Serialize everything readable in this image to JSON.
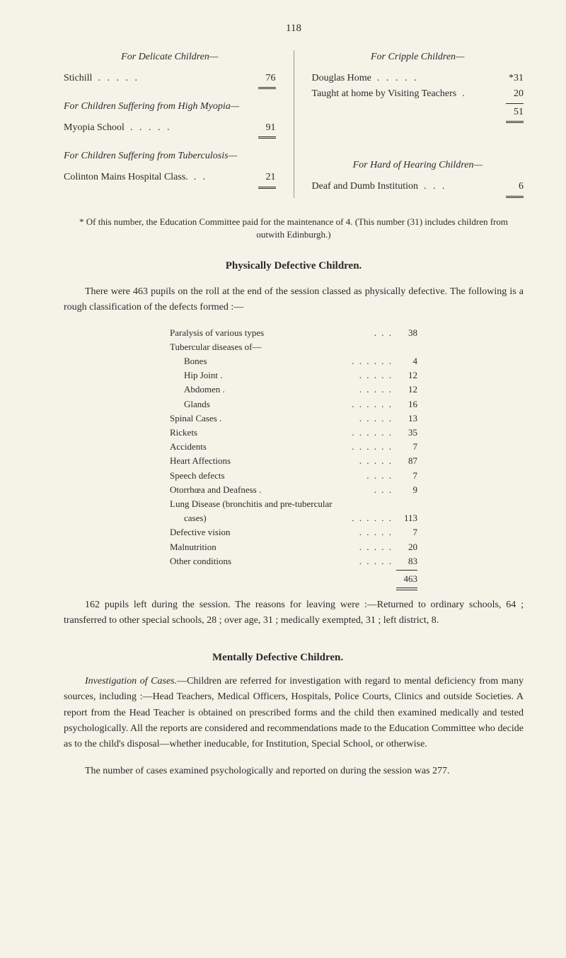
{
  "page_number": "118",
  "top_section": {
    "left": {
      "group1": {
        "header": "For Delicate Children—",
        "rows": [
          {
            "label": "Stichill",
            "dots": ".     .     .     .     .",
            "value": "76"
          }
        ]
      },
      "group2": {
        "header": "For Children Suffering from High Myopia—",
        "rows": [
          {
            "label": "Myopia School",
            "dots": ".     .     .     .     .",
            "value": "91"
          }
        ]
      },
      "group3": {
        "header": "For Children Suffering from Tuberculosis—",
        "rows": [
          {
            "label": "Colinton Mains Hospital Class.",
            "dots": ".     .",
            "value": "21"
          }
        ]
      }
    },
    "right": {
      "group1": {
        "header": "For Cripple Children—",
        "rows": [
          {
            "label": "Douglas Home",
            "dots": ".     .     .     .     .",
            "value": "*31"
          },
          {
            "label": "Taught at home by Visiting Teachers",
            "dots": ".",
            "value": "20"
          }
        ],
        "subtotal": "51"
      },
      "group2": {
        "header": "For Hard of Hearing Children—",
        "rows": [
          {
            "label": "Deaf and Dumb Institution",
            "dots": ".     .     .",
            "value": "6"
          }
        ]
      }
    }
  },
  "footnote": "* Of this number, the Education Committee paid for the maintenance of 4. (This number (31) includes children from outwith Edinburgh.)",
  "physically_defective": {
    "heading": "Physically Defective Children.",
    "intro": "There were 463 pupils on the roll at the end of the session classed as physically defective. The following is a rough classification of the defects formed :—",
    "stats": [
      {
        "label": "Paralysis of various types",
        "dots": ".    .    .",
        "value": "38",
        "indent": 0
      },
      {
        "label": "Tubercular diseases of—",
        "dots": "",
        "value": "",
        "indent": 0
      },
      {
        "label": "Bones",
        "dots": ".    .    .    .    .    .",
        "value": "4",
        "indent": 1
      },
      {
        "label": "Hip Joint .",
        "dots": ".    .    .    .    .",
        "value": "12",
        "indent": 1
      },
      {
        "label": "Abdomen .",
        "dots": ".    .    .    .    .",
        "value": "12",
        "indent": 1
      },
      {
        "label": "Glands",
        "dots": ".    .    .    .    .    .",
        "value": "16",
        "indent": 1
      },
      {
        "label": "Spinal Cases .",
        "dots": ".    .    .    .    .",
        "value": "13",
        "indent": 0
      },
      {
        "label": "Rickets",
        "dots": ".    .    .    .    .    .",
        "value": "35",
        "indent": 0
      },
      {
        "label": "Accidents",
        "dots": ".    .    .    .    .    .",
        "value": "7",
        "indent": 0
      },
      {
        "label": "Heart Affections",
        "dots": ".    .    .    .    .",
        "value": "87",
        "indent": 0
      },
      {
        "label": "Speech defects",
        "dots": ".    .    .    .",
        "value": "7",
        "indent": 0
      },
      {
        "label": "Otorrhœa and Deafness .",
        "dots": ".    .    .",
        "value": "9",
        "indent": 0
      },
      {
        "label": "Lung Disease (bronchitis and pre-tubercular",
        "dots": "",
        "value": "",
        "indent": 0
      },
      {
        "label": "cases)",
        "dots": ".    .    .    .    .    .",
        "value": "113",
        "indent": 1
      },
      {
        "label": "Defective vision",
        "dots": ".    .    .    .    .",
        "value": "7",
        "indent": 0
      },
      {
        "label": "Malnutrition",
        "dots": ".    .    .    .    .",
        "value": "20",
        "indent": 0
      },
      {
        "label": "Other conditions",
        "dots": ".    .    .    .    .",
        "value": "83",
        "indent": 0
      }
    ],
    "total": "463",
    "conclusion": "162 pupils left during the session. The reasons for leaving were :—Returned to ordinary schools, 64 ; transferred to other special schools, 28 ; over age, 31 ; medically exempted, 31 ; left district, 8."
  },
  "mentally_defective": {
    "heading": "Mentally Defective Children.",
    "para1_label": "Investigation of Cases.",
    "para1": "—Children are referred for investigation with regard to mental deficiency from many sources, including :—Head Teachers, Medical Officers, Hospitals, Police Courts, Clinics and outside Societies. A report from the Head Teacher is obtained on prescribed forms and the child then examined medically and tested psychologically. All the reports are considered and recommendations made to the Education Committee who decide as to the child's disposal—whether ineducable, for Institution, Special School, or otherwise.",
    "para2": "The number of cases examined psychologically and reported on during the session was 277."
  }
}
